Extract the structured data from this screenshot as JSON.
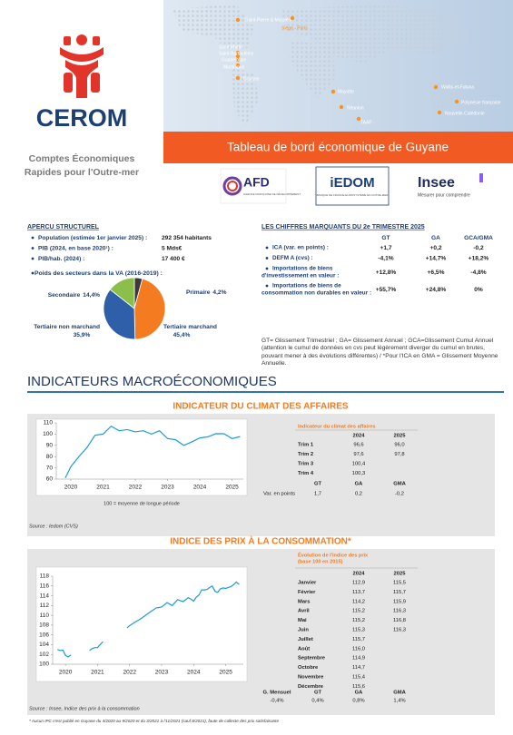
{
  "header": {
    "logo": "CEROM",
    "subtitle_1": "Comptes Économiques",
    "subtitle_2": "Rapides pour l'Outre-mer",
    "map_labels": [
      "Saint-Pierre & Miquelon",
      "Siège - Paris",
      "Saint-Martin",
      "Saint-Barthélemy",
      "Guadeloupe",
      "Martinique",
      "Guyane",
      "Mayotte",
      "Réunion",
      "TAAF",
      "Wallis-et-Futuna",
      "Polynésie française",
      "Nouvelle-Calédonie"
    ],
    "banner": "Tableau de bord économique de Guyane",
    "afd": "AFD",
    "afd_tagline": "AGENCE FRANÇAISE DE DÉVELOPPEMENT",
    "iedom": "iEDOM",
    "iedom_tagline": "BANQUE DE FRANCE-EUROSYSTÈME EN OUTRE-MER",
    "insee": "Insee",
    "insee_tagline": "Mesurer pour comprendre"
  },
  "structure": {
    "title": "APERCU STRUCTUREL",
    "items": [
      {
        "label": "Population (estimée 1er janvier 2025) :",
        "value": "292 354 habitants"
      },
      {
        "label": "PIB (2024, en base 2020¹) :",
        "value": "5 Mds€"
      },
      {
        "label": "PIB/hab. (2024) :",
        "value": "17 400 €"
      }
    ]
  },
  "key_figures": {
    "title": "LES CHIFFRES MARQUANTS DU 2e TRIMESTRE 2025",
    "columns": [
      "GT",
      "GA",
      "GCA/GMA"
    ],
    "rows": [
      {
        "label": [
          "ICA (var. en points) :"
        ],
        "values": [
          "+1,7",
          "+0,2",
          "-0,2"
        ]
      },
      {
        "label": [
          "DEFM A (cvs) :"
        ],
        "values": [
          "-4,1%",
          "+14,7%",
          "+18,2%"
        ]
      },
      {
        "label": [
          "Importations de biens",
          "d'investissement en valeur :"
        ],
        "values": [
          "+12,8%",
          "+6,5%",
          "-4,8%"
        ]
      },
      {
        "label": [
          "Importations de biens de",
          "consommation non durables en valeur :"
        ],
        "values": [
          "+55,7%",
          "+24,8%",
          "0%"
        ]
      }
    ],
    "note": "GT= Glissement Trimestriel ; GA= Glissement Annuel ; GCA=Glissement Cumul Annuel (attention le cumul de données en cvs peut légèrement diverger du cumul en brutes, pouvant mener à des évolutions différentes) / *Pour l'ICA en GMA = Glissement Moyenne Annuelle."
  },
  "section_title": "INDICATEURS MACROÉCONOMIQUES",
  "business": {
    "table_title": "Indicateur du climat des affaires",
    "columns": [
      "2024",
      "2025"
    ],
    "rows": [
      [
        "Trim 1",
        "96,6",
        "96,0"
      ],
      [
        "Trim 2",
        "97,6",
        "97,8"
      ],
      [
        "Trim 3",
        "100,4"
      ],
      [
        "Trim 4",
        "100,3"
      ]
    ],
    "growth_columns": [
      "GT",
      "GA",
      "GMA"
    ],
    "growth_row": [
      "Var. en points",
      "1,7",
      "0,2",
      "-0,2"
    ],
    "note": "100 = moyenne de longue période",
    "source": "Source : Iedom (CVS)"
  },
  "prices": {
    "table_title": [
      "Évolution de l'indice des prix",
      "(base 100 en 2015)"
    ],
    "columns": [
      "2024",
      "2025"
    ],
    "rows": [
      [
        "Janvier",
        "112,9",
        "115,5"
      ],
      [
        "Février",
        "113,7",
        "115,7"
      ],
      [
        "Mars",
        "114,2",
        "115,9"
      ],
      [
        "Avril",
        "115,2",
        "116,3"
      ],
      [
        "Mai",
        "115,2",
        "116,8"
      ],
      [
        "Juin",
        "115,3",
        "116,3"
      ],
      [
        "Juillet",
        "115,7"
      ],
      [
        "Août",
        "116,0"
      ],
      [
        "Septembre",
        "114,9"
      ],
      [
        "Octobre",
        "114,7"
      ],
      [
        "Novembre",
        "115,4"
      ],
      [
        "Décembre",
        "115,6"
      ]
    ],
    "growth_columns": [
      "G. Mensuel",
      "GT",
      "GA",
      "GMA"
    ],
    "growth_row": [
      "-0,4%",
      "0,4%",
      "0,8%",
      "1,4%"
    ],
    "source": "Source : Insee, Indice des prix à la consommation",
    "footnote": "* Aucun IPC n'est publié en Guyane du 4/2020 au 9/2020 et du 3/2021 à l'11/2021 (sauf 8/2021), faute de collecte des prix satisfaisante"
  },
  "chart_data": [
    {
      "type": "pie",
      "title": "Poids des secteurs dans la VA (2016-2019) :",
      "categories": [
        "Primaire",
        "Tertiaire marchand",
        "Tertiaire non marchand",
        "Secondaire"
      ],
      "values": [
        4.2,
        45.4,
        35.9,
        14.4
      ],
      "value_labels": [
        "4,2%",
        "45,4%",
        "35,9%",
        "14,4%"
      ],
      "colors": [
        "#3a3a3a",
        "#f47b20",
        "#2e5fa8",
        "#8cbf4a"
      ]
    },
    {
      "type": "line",
      "title": "INDICATEUR DU CLIMAT DES AFFAIRES",
      "x": [
        2019.83,
        2020.0,
        2020.25,
        2020.5,
        2020.75,
        2021.0,
        2021.25,
        2021.5,
        2021.75,
        2022.0,
        2022.25,
        2022.5,
        2022.75,
        2023.0,
        2023.25,
        2023.5,
        2023.75,
        2024.0,
        2024.25,
        2024.5,
        2024.75,
        2025.0,
        2025.25
      ],
      "series": [
        {
          "name": "Indicateur du climat des affaires",
          "color": "#1e9bd7",
          "values": [
            61,
            71,
            80,
            88,
            99,
            100,
            107,
            103,
            104,
            102,
            103,
            100,
            103,
            96,
            95,
            90,
            93,
            96.6,
            97.6,
            100.4,
            100.3,
            96.0,
            97.8
          ]
        }
      ],
      "xlim": [
        2019.55,
        2025.35
      ],
      "xticks": [
        2020,
        2021,
        2022,
        2023,
        2024,
        2025
      ],
      "ylim": [
        60,
        110
      ],
      "yticks": [
        60,
        70,
        80,
        90,
        100,
        110
      ],
      "grid": false
    },
    {
      "type": "line",
      "title": "INDICE DES PRIX À LA CONSOMMATION*",
      "x": [
        2019.75,
        2019.83,
        2019.92,
        2020.0,
        2020.08,
        2020.17,
        2020.25,
        2020.75,
        2020.83,
        2020.92,
        2021.0,
        2021.08,
        2021.17,
        2021.25,
        2021.92,
        2022.0,
        2022.17,
        2022.33,
        2022.5,
        2022.67,
        2022.83,
        2023.0,
        2023.17,
        2023.33,
        2023.5,
        2023.67,
        2023.83,
        2023.92,
        2024.0,
        2024.08,
        2024.17,
        2024.25,
        2024.33,
        2024.42,
        2024.5,
        2024.58,
        2024.67,
        2024.75,
        2024.83,
        2024.92,
        2025.0,
        2025.08,
        2025.17,
        2025.25,
        2025.33,
        2025.42
      ],
      "series": [
        {
          "name": "Indice des prix",
          "color": "#1e9bd7",
          "values": [
            103.0,
            102.8,
            102.9,
            101.8,
            101.5,
            101.9,
            null,
            102.8,
            103.2,
            103.4,
            103.4,
            104.0,
            104.6,
            null,
            107.4,
            107.9,
            108.6,
            109.2,
            110.0,
            110.8,
            111.5,
            111.7,
            112.6,
            112.0,
            113.2,
            112.8,
            113.6,
            113.3,
            112.9,
            113.7,
            114.2,
            115.2,
            115.2,
            115.3,
            115.7,
            116.0,
            114.9,
            114.7,
            115.4,
            115.6,
            115.5,
            115.7,
            115.9,
            116.3,
            116.8,
            116.3
          ]
        }
      ],
      "xlim": [
        2019.6,
        2025.55
      ],
      "xticks": [
        2020,
        2021,
        2022,
        2023,
        2024,
        2025
      ],
      "ylim": [
        100,
        118
      ],
      "yticks": [
        100,
        102,
        104,
        106,
        108,
        110,
        112,
        114,
        116,
        118
      ],
      "grid": false
    }
  ]
}
